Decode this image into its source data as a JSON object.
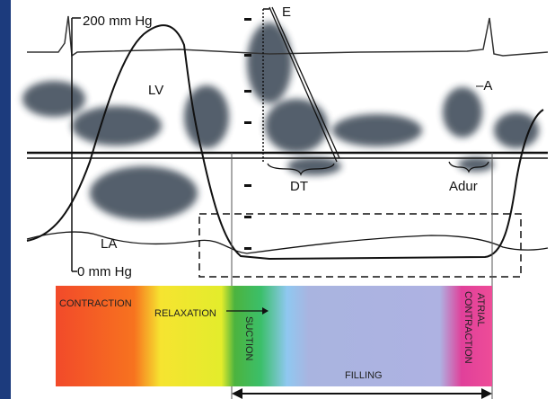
{
  "labels": {
    "pressure_max": "200 mm Hg",
    "pressure_min": "0 mm Hg",
    "lv": "LV",
    "la": "LA",
    "e_wave": "E",
    "a_wave": "–A",
    "dt": "DT",
    "adur": "Adur"
  },
  "phases": {
    "contraction": "CONTRACTION",
    "relaxation": "RELAXATION",
    "suction": "SUCTION",
    "filling": "FILLING",
    "atrial_contraction": [
      "ATRIAL",
      "CONTRACTION"
    ]
  }
}
